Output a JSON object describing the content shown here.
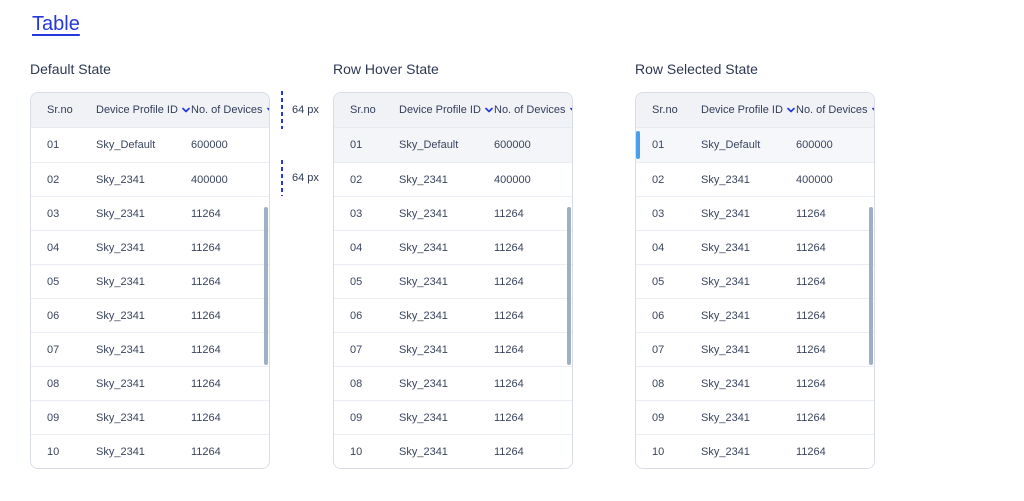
{
  "page": {
    "title": "Table"
  },
  "columns": [
    "Sr.no",
    "Device Profile ID",
    "No. of Devices"
  ],
  "sections": [
    {
      "label": "Default State",
      "state": "default"
    },
    {
      "label": "Row Hover State",
      "state": "hover"
    },
    {
      "label": "Row Selected State",
      "state": "selected"
    }
  ],
  "rows": [
    {
      "sr": "01",
      "profile": "Sky_Default",
      "devices": "600000"
    },
    {
      "sr": "02",
      "profile": "Sky_2341",
      "devices": "400000"
    },
    {
      "sr": "03",
      "profile": "Sky_2341",
      "devices": "11264"
    },
    {
      "sr": "04",
      "profile": "Sky_2341",
      "devices": "11264"
    },
    {
      "sr": "05",
      "profile": "Sky_2341",
      "devices": "11264"
    },
    {
      "sr": "06",
      "profile": "Sky_2341",
      "devices": "11264"
    },
    {
      "sr": "07",
      "profile": "Sky_2341",
      "devices": "11264"
    },
    {
      "sr": "08",
      "profile": "Sky_2341",
      "devices": "11264"
    },
    {
      "sr": "09",
      "profile": "Sky_2341",
      "devices": "11264"
    },
    {
      "sr": "10",
      "profile": "Sky_2341",
      "devices": "11264"
    }
  ],
  "annotations": {
    "header_height": "64 px",
    "row_height": "64 px"
  },
  "colors": {
    "accent": "#2538dd",
    "selected_bar": "#4aa0e8",
    "scrollbar": "#95a7c0",
    "header_bg": "#f0f2f6",
    "hover_bg": "#f3f5f8",
    "selected_bg": "#f5f7fa"
  }
}
